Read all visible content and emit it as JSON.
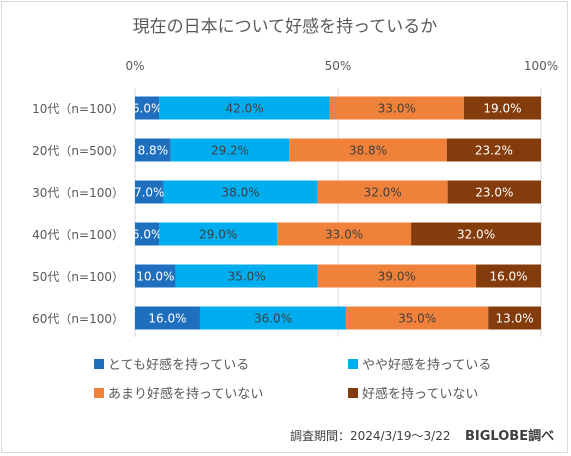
{
  "chart_data": {
    "type": "bar",
    "orientation": "horizontal",
    "stacked": true,
    "title": "現在の日本について好感を持っているか",
    "categories": [
      "10代（n=100）",
      "20代（n=500）",
      "30代（n=100）",
      "40代（n=100）",
      "50代（n=100）",
      "60代（n=100）"
    ],
    "xticks": [
      "0%",
      "50%",
      "100%"
    ],
    "xlim": [
      0,
      100
    ],
    "grid": true,
    "series": [
      {
        "name": "とても好感を持っている",
        "color": "#1f6fbf",
        "label_color": "#ffffff",
        "values": [
          6.0,
          8.8,
          7.0,
          6.0,
          10.0,
          16.0
        ],
        "labels": [
          "6.0%",
          "8.8%",
          "7.0%",
          "6.0%",
          "10.0%",
          "16.0%"
        ]
      },
      {
        "name": "やや好感を持っている",
        "color": "#00aeef",
        "label_color": "#404040",
        "values": [
          42.0,
          29.2,
          38.0,
          29.0,
          35.0,
          36.0
        ],
        "labels": [
          "42.0%",
          "29.2%",
          "38.0%",
          "29.0%",
          "35.0%",
          "36.0%"
        ]
      },
      {
        "name": "あまり好感を持っていない",
        "color": "#f0813a",
        "label_color": "#404040",
        "values": [
          33.0,
          38.8,
          32.0,
          33.0,
          39.0,
          35.0
        ],
        "labels": [
          "33.0%",
          "38.8%",
          "32.0%",
          "33.0%",
          "39.0%",
          "35.0%"
        ]
      },
      {
        "name": "好感を持っていない",
        "color": "#843c0c",
        "label_color": "#ffffff",
        "values": [
          19.0,
          23.2,
          23.0,
          32.0,
          16.0,
          13.0
        ],
        "labels": [
          "19.0%",
          "23.2%",
          "23.0%",
          "32.0%",
          "16.0%",
          "13.0%"
        ]
      }
    ],
    "legend_placement": "bottom"
  },
  "footer": {
    "source": "調査期間：2024/3/19～3/22",
    "brand": "BIGLOBE調べ"
  },
  "colors": {
    "grid": "#d9d9d9",
    "text": "#595959"
  }
}
